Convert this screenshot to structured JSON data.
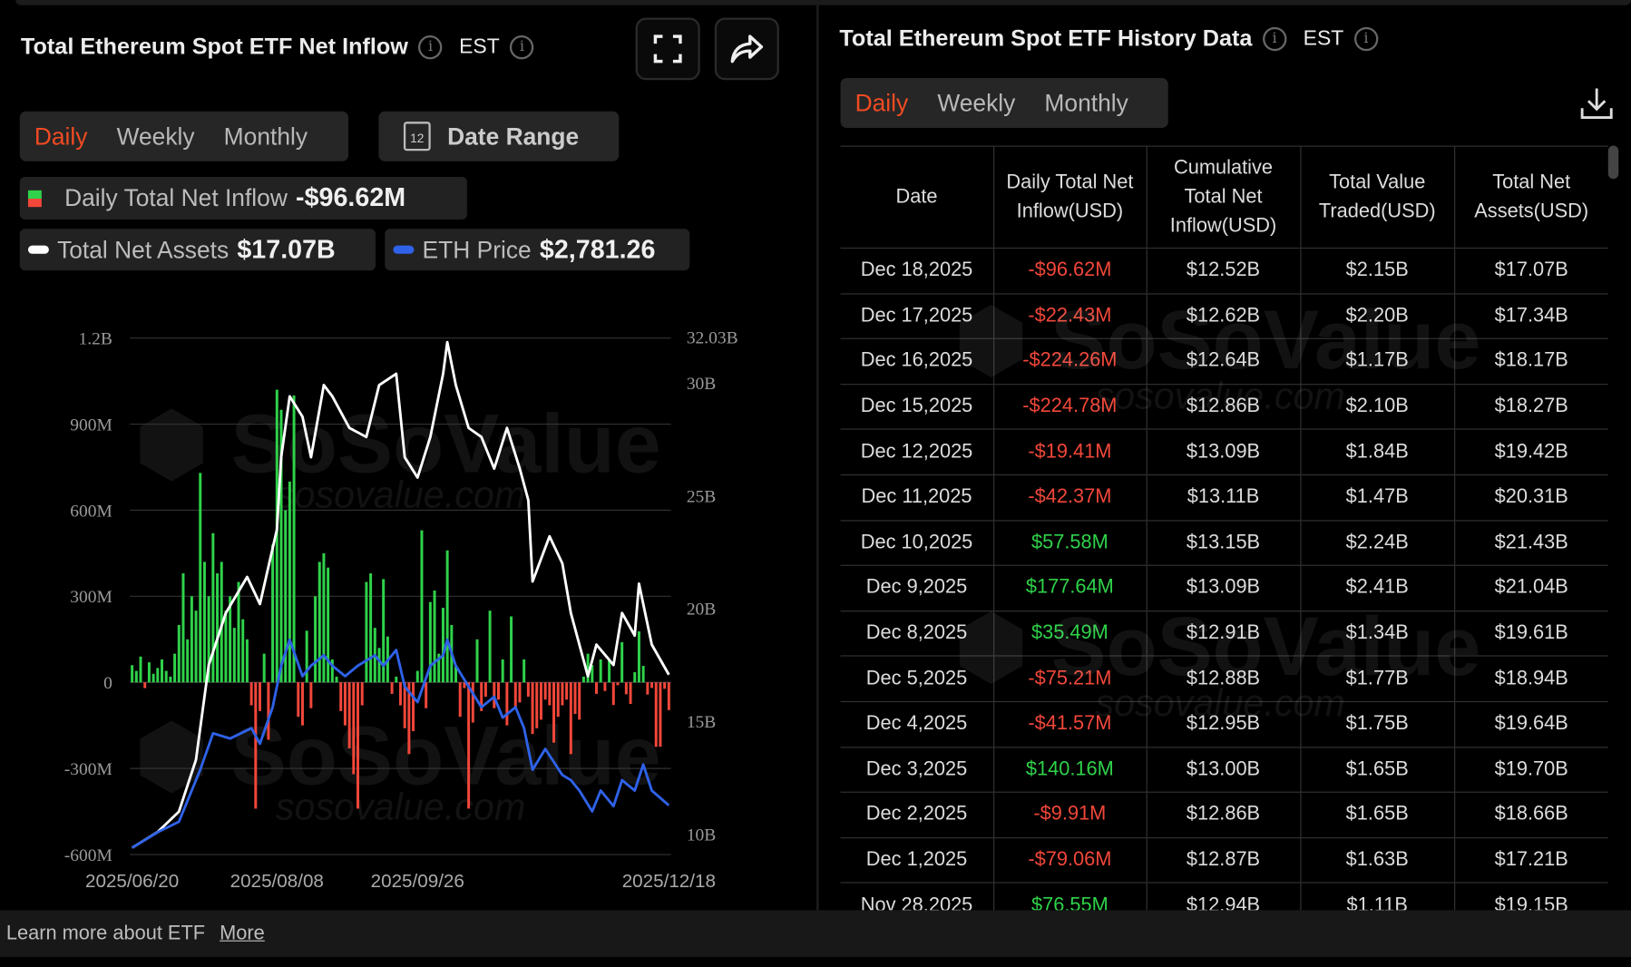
{
  "left": {
    "title": "Total Ethereum Spot ETF Net Inflow",
    "timezone": "EST",
    "tabs": [
      "Daily",
      "Weekly",
      "Monthly"
    ],
    "active_tab": "Daily",
    "date_range_label": "Date Range",
    "calendar_day": "12",
    "legend": {
      "inflow_label": "Daily Total Net Inflow",
      "inflow_value": "-$96.62M",
      "assets_label": "Total Net Assets",
      "assets_value": "$17.07B",
      "price_label": "ETH Price",
      "price_value": "$2,781.26"
    }
  },
  "right": {
    "title": "Total Ethereum Spot ETF History Data",
    "timezone": "EST",
    "tabs": [
      "Daily",
      "Weekly",
      "Monthly"
    ],
    "active_tab": "Daily",
    "columns": [
      "Date",
      "Daily Total Net Inflow(USD)",
      "Cumulative Total Net Inflow(USD)",
      "Total Value Traded(USD)",
      "Total Net Assets(USD)"
    ],
    "rows": [
      [
        "Dec 18,2025",
        "-$96.62M",
        "$12.52B",
        "$2.15B",
        "$17.07B"
      ],
      [
        "Dec 17,2025",
        "-$22.43M",
        "$12.62B",
        "$2.20B",
        "$17.34B"
      ],
      [
        "Dec 16,2025",
        "-$224.26M",
        "$12.64B",
        "$1.17B",
        "$18.17B"
      ],
      [
        "Dec 15,2025",
        "-$224.78M",
        "$12.86B",
        "$2.10B",
        "$18.27B"
      ],
      [
        "Dec 12,2025",
        "-$19.41M",
        "$13.09B",
        "$1.84B",
        "$19.42B"
      ],
      [
        "Dec 11,2025",
        "-$42.37M",
        "$13.11B",
        "$1.47B",
        "$20.31B"
      ],
      [
        "Dec 10,2025",
        "$57.58M",
        "$13.15B",
        "$2.24B",
        "$21.43B"
      ],
      [
        "Dec 9,2025",
        "$177.64M",
        "$13.09B",
        "$2.41B",
        "$21.04B"
      ],
      [
        "Dec 8,2025",
        "$35.49M",
        "$12.91B",
        "$1.34B",
        "$19.61B"
      ],
      [
        "Dec 5,2025",
        "-$75.21M",
        "$12.88B",
        "$1.77B",
        "$18.94B"
      ],
      [
        "Dec 4,2025",
        "-$41.57M",
        "$12.95B",
        "$1.75B",
        "$19.64B"
      ],
      [
        "Dec 3,2025",
        "$140.16M",
        "$13.00B",
        "$1.65B",
        "$19.70B"
      ],
      [
        "Dec 2,2025",
        "-$9.91M",
        "$12.86B",
        "$1.65B",
        "$18.66B"
      ],
      [
        "Dec 1,2025",
        "-$79.06M",
        "$12.87B",
        "$1.63B",
        "$17.21B"
      ],
      [
        "Nov 28,2025",
        "$76.55M",
        "$12.94B",
        "$1.11B",
        "$19.15B"
      ]
    ]
  },
  "footer": {
    "text": "Learn more about ETF",
    "link": "More"
  },
  "watermark": {
    "brand": "SoSoValue",
    "url": "sosovalue.com"
  },
  "colors": {
    "accent": "#f24b22",
    "positive": "#2fd24a",
    "negative": "#f2473a",
    "assets_line": "#ffffff",
    "price_line": "#2f62e8"
  },
  "chart_data": {
    "type": "bar+line",
    "x_ticks": [
      "2025/06/20",
      "2025/08/08",
      "2025/09/26",
      "2025/12/18"
    ],
    "x_tick_index": [
      0,
      34,
      67,
      126
    ],
    "left_axis": {
      "ticks": [
        "1.2B",
        "900M",
        "600M",
        "300M",
        "0",
        "-300M",
        "-600M"
      ],
      "values": [
        1200,
        900,
        600,
        300,
        0,
        -300,
        -600
      ],
      "unit": "M USD",
      "ylim": [
        -600,
        1200
      ]
    },
    "right_axis": {
      "ticks": [
        "32.03B",
        "30B",
        "25B",
        "20B",
        "15B",
        "10B"
      ],
      "values": [
        32.03,
        30,
        25,
        20,
        15,
        10
      ],
      "unit": "B USD",
      "ylim": [
        9.4,
        32.03
      ]
    },
    "price_axis_hidden": {
      "ylim": [
        2200,
        8480
      ]
    },
    "series": [
      {
        "name": "Daily Total Net Inflow",
        "type": "bar",
        "unit": "M USD",
        "values": [
          60,
          40,
          90,
          -20,
          70,
          30,
          50,
          80,
          40,
          20,
          100,
          200,
          380,
          150,
          300,
          250,
          730,
          420,
          300,
          520,
          380,
          420,
          250,
          300,
          190,
          350,
          220,
          150,
          -80,
          -440,
          -100,
          100,
          -200,
          480,
          1020,
          950,
          600,
          700,
          1000,
          -120,
          -150,
          180,
          -90,
          300,
          420,
          450,
          400,
          80,
          20,
          -100,
          -150,
          -230,
          -320,
          -440,
          -80,
          350,
          380,
          190,
          120,
          360,
          160,
          -40,
          20,
          -80,
          -160,
          -250,
          -170,
          40,
          530,
          -90,
          280,
          320,
          100,
          260,
          460,
          200,
          60,
          -120,
          -20,
          -440,
          -140,
          150,
          -100,
          -50,
          250,
          -90,
          -60,
          80,
          -150,
          230,
          -90,
          -70,
          80,
          -50,
          -180,
          -160,
          -130,
          -60,
          -80,
          -210,
          -120,
          -80,
          -60,
          -250,
          -110,
          -130,
          20,
          100,
          60,
          -40,
          80,
          -30,
          76.55,
          -79.06,
          -9.91,
          140.16,
          -41.57,
          -75.21,
          35.49,
          177.64,
          57.58,
          -42.37,
          -19.41,
          -224.78,
          -224.26,
          -22.43,
          -96.62
        ]
      },
      {
        "name": "Total Net Assets",
        "type": "line",
        "unit": "B USD",
        "points": [
          [
            0,
            9.4
          ],
          [
            6,
            10.1
          ],
          [
            11,
            11
          ],
          [
            15,
            13.3
          ],
          [
            18,
            17.5
          ],
          [
            22,
            19.8
          ],
          [
            27,
            21.4
          ],
          [
            30,
            20.2
          ],
          [
            34,
            23.5
          ],
          [
            35,
            26.7
          ],
          [
            37,
            29.4
          ],
          [
            40,
            28.5
          ],
          [
            42,
            26.7
          ],
          [
            45,
            29.9
          ],
          [
            47,
            29.4
          ],
          [
            51,
            28
          ],
          [
            55,
            27.6
          ],
          [
            58,
            29.9
          ],
          [
            62,
            30.4
          ],
          [
            64,
            26.7
          ],
          [
            67,
            25.8
          ],
          [
            70,
            27.6
          ],
          [
            73,
            30.4
          ],
          [
            74,
            31.8
          ],
          [
            76,
            29.9
          ],
          [
            79,
            28
          ],
          [
            82,
            27.6
          ],
          [
            85,
            26.2
          ],
          [
            88,
            28
          ],
          [
            91,
            26.2
          ],
          [
            93,
            24.8
          ],
          [
            94,
            21.2
          ],
          [
            98,
            23.2
          ],
          [
            101,
            22
          ],
          [
            103,
            19.8
          ],
          [
            107,
            17
          ],
          [
            109,
            18.4
          ],
          [
            113,
            17.5
          ],
          [
            115,
            19.8
          ],
          [
            118,
            18.8
          ],
          [
            119,
            21.1
          ],
          [
            122,
            18.4
          ],
          [
            126,
            17.07
          ]
        ]
      },
      {
        "name": "ETH Price",
        "type": "line",
        "unit": "USD",
        "points": [
          [
            0,
            2263
          ],
          [
            6,
            2454
          ],
          [
            11,
            2581
          ],
          [
            16,
            3215
          ],
          [
            19,
            3659
          ],
          [
            23,
            3596
          ],
          [
            28,
            3723
          ],
          [
            30,
            3532
          ],
          [
            33,
            3977
          ],
          [
            35,
            4484
          ],
          [
            37,
            4801
          ],
          [
            40,
            4357
          ],
          [
            42,
            4484
          ],
          [
            45,
            4611
          ],
          [
            47,
            4484
          ],
          [
            50,
            4357
          ],
          [
            53,
            4484
          ],
          [
            57,
            4611
          ],
          [
            59,
            4484
          ],
          [
            62,
            4675
          ],
          [
            64,
            4230
          ],
          [
            67,
            4040
          ],
          [
            70,
            4484
          ],
          [
            73,
            4611
          ],
          [
            74,
            4801
          ],
          [
            76,
            4484
          ],
          [
            79,
            4230
          ],
          [
            82,
            3977
          ],
          [
            85,
            4104
          ],
          [
            87,
            3850
          ],
          [
            90,
            3977
          ],
          [
            92,
            3723
          ],
          [
            94,
            3215
          ],
          [
            97,
            3469
          ],
          [
            101,
            3152
          ],
          [
            103,
            3088
          ],
          [
            105,
            2961
          ],
          [
            108,
            2708
          ],
          [
            110,
            2961
          ],
          [
            113,
            2771
          ],
          [
            115,
            3088
          ],
          [
            118,
            2961
          ],
          [
            120,
            3279
          ],
          [
            122,
            2961
          ],
          [
            126,
            2781.26
          ]
        ]
      }
    ]
  }
}
